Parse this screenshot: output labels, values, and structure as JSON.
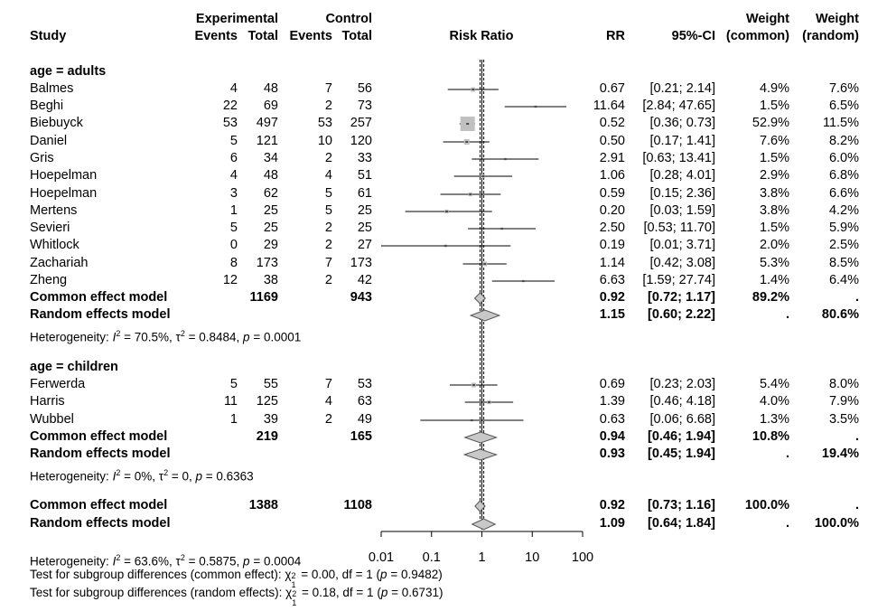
{
  "header": {
    "study": "Study",
    "experimental": "Experimental",
    "control": "Control",
    "events1": "Events",
    "total1": "Total",
    "events2": "Events",
    "total2": "Total",
    "risk_ratio": "Risk Ratio",
    "rr": "RR",
    "ci": "95%-CI",
    "weight1": "Weight",
    "weight1_sub": "(common)",
    "weight2": "Weight",
    "weight2_sub": "(random)"
  },
  "rows": [
    {
      "kind": "group",
      "label": "age = adults"
    },
    {
      "kind": "study",
      "label": "Balmes",
      "e_ev": "4",
      "e_tot": "48",
      "c_ev": "7",
      "c_tot": "56",
      "rr": "0.67",
      "ci": "[0.21; 2.14]",
      "w_common": "4.9%",
      "w_random": "7.6%"
    },
    {
      "kind": "study",
      "label": "Beghi",
      "e_ev": "22",
      "e_tot": "69",
      "c_ev": "2",
      "c_tot": "73",
      "rr": "11.64",
      "ci": "[2.84; 47.65]",
      "w_common": "1.5%",
      "w_random": "6.5%"
    },
    {
      "kind": "study",
      "label": "Biebuyck",
      "e_ev": "53",
      "e_tot": "497",
      "c_ev": "53",
      "c_tot": "257",
      "rr": "0.52",
      "ci": "[0.36; 0.73]",
      "w_common": "52.9%",
      "w_random": "11.5%"
    },
    {
      "kind": "study",
      "label": "Daniel",
      "e_ev": "5",
      "e_tot": "121",
      "c_ev": "10",
      "c_tot": "120",
      "rr": "0.50",
      "ci": "[0.17; 1.41]",
      "w_common": "7.6%",
      "w_random": "8.2%"
    },
    {
      "kind": "study",
      "label": "Gris",
      "e_ev": "6",
      "e_tot": "34",
      "c_ev": "2",
      "c_tot": "33",
      "rr": "2.91",
      "ci": "[0.63; 13.41]",
      "w_common": "1.5%",
      "w_random": "6.0%"
    },
    {
      "kind": "study",
      "label": "Hoepelman",
      "e_ev": "4",
      "e_tot": "48",
      "c_ev": "4",
      "c_tot": "51",
      "rr": "1.06",
      "ci": "[0.28; 4.01]",
      "w_common": "2.9%",
      "w_random": "6.8%"
    },
    {
      "kind": "study",
      "label": "Hoepelman",
      "e_ev": "3",
      "e_tot": "62",
      "c_ev": "5",
      "c_tot": "61",
      "rr": "0.59",
      "ci": "[0.15; 2.36]",
      "w_common": "3.8%",
      "w_random": "6.6%"
    },
    {
      "kind": "study",
      "label": "Mertens",
      "e_ev": "1",
      "e_tot": "25",
      "c_ev": "5",
      "c_tot": "25",
      "rr": "0.20",
      "ci": "[0.03; 1.59]",
      "w_common": "3.8%",
      "w_random": "4.2%"
    },
    {
      "kind": "study",
      "label": "Sevieri",
      "e_ev": "5",
      "e_tot": "25",
      "c_ev": "2",
      "c_tot": "25",
      "rr": "2.50",
      "ci": "[0.53; 11.70]",
      "w_common": "1.5%",
      "w_random": "5.9%"
    },
    {
      "kind": "study",
      "label": "Whitlock",
      "e_ev": "0",
      "e_tot": "29",
      "c_ev": "2",
      "c_tot": "27",
      "rr": "0.19",
      "ci": "[0.01; 3.71]",
      "w_common": "2.0%",
      "w_random": "2.5%"
    },
    {
      "kind": "study",
      "label": "Zachariah",
      "e_ev": "8",
      "e_tot": "173",
      "c_ev": "7",
      "c_tot": "173",
      "rr": "1.14",
      "ci": "[0.42; 3.08]",
      "w_common": "5.3%",
      "w_random": "8.5%"
    },
    {
      "kind": "study",
      "label": "Zheng",
      "e_ev": "12",
      "e_tot": "38",
      "c_ev": "2",
      "c_tot": "42",
      "rr": "6.63",
      "ci": "[1.59; 27.74]",
      "w_common": "1.4%",
      "w_random": "6.4%"
    },
    {
      "kind": "common",
      "label": "Common effect model",
      "e_tot": "1169",
      "c_tot": "943",
      "rr": "0.92",
      "ci": "[0.72; 1.17]",
      "w_common": "89.2%",
      "w_random": "."
    },
    {
      "kind": "random",
      "label": "Random effects model",
      "rr": "1.15",
      "ci": "[0.60; 2.22]",
      "w_common": ".",
      "w_random": "80.6%"
    },
    {
      "kind": "het",
      "pre": "Heterogeneity: ",
      "i2": "I",
      "sup": "2",
      "mid": " = 70.5%, τ",
      "sup2": "2",
      "mid2": " = 0.8484, ",
      "p": "p",
      "post": " = 0.0001"
    },
    {
      "kind": "blank"
    },
    {
      "kind": "group",
      "label": "age = children"
    },
    {
      "kind": "study",
      "label": "Ferwerda",
      "e_ev": "5",
      "e_tot": "55",
      "c_ev": "7",
      "c_tot": "53",
      "rr": "0.69",
      "ci": "[0.23; 2.03]",
      "w_common": "5.4%",
      "w_random": "8.0%"
    },
    {
      "kind": "study",
      "label": "Harris",
      "e_ev": "11",
      "e_tot": "125",
      "c_ev": "4",
      "c_tot": "63",
      "rr": "1.39",
      "ci": "[0.46; 4.18]",
      "w_common": "4.0%",
      "w_random": "7.9%"
    },
    {
      "kind": "study",
      "label": "Wubbel",
      "e_ev": "1",
      "e_tot": "39",
      "c_ev": "2",
      "c_tot": "49",
      "rr": "0.63",
      "ci": "[0.06; 6.68]",
      "w_common": "1.3%",
      "w_random": "3.5%"
    },
    {
      "kind": "common",
      "label": "Common effect model",
      "e_tot": "219",
      "c_tot": "165",
      "rr": "0.94",
      "ci": "[0.46; 1.94]",
      "w_common": "10.8%",
      "w_random": "."
    },
    {
      "kind": "random",
      "label": "Random effects model",
      "rr": "0.93",
      "ci": "[0.45; 1.94]",
      "w_common": ".",
      "w_random": "19.4%"
    },
    {
      "kind": "het",
      "pre": "Heterogeneity: ",
      "i2": "I",
      "sup": "2",
      "mid": " = 0%, τ",
      "sup2": "2",
      "mid2": " = 0, ",
      "p": "p",
      "post": " = 0.6363"
    },
    {
      "kind": "blank"
    },
    {
      "kind": "common",
      "label": "Common effect model",
      "e_tot": "1388",
      "c_tot": "1108",
      "rr": "0.92",
      "ci": "[0.73; 1.16]",
      "w_common": "100.0%",
      "w_random": "."
    },
    {
      "kind": "random",
      "label": "Random effects model",
      "rr": "1.09",
      "ci": "[0.64; 1.84]",
      "w_common": ".",
      "w_random": "100.0%"
    }
  ],
  "footer": {
    "het": {
      "pre": "Heterogeneity: ",
      "i2": "I",
      "sup": "2",
      "mid": " = 63.6%, τ",
      "sup2": "2",
      "mid2": " = 0.5875, ",
      "p": "p",
      "post": " = 0.0004"
    },
    "test_common": {
      "pre": "Test for subgroup differences (common effect): ",
      "chi": "χ",
      "sup": "2",
      "sub": "1",
      "mid": " = 0.00, df = 1 (",
      "p": "p",
      "post": " = 0.9482)"
    },
    "test_random": {
      "pre": "Test for subgroup differences (random effects): ",
      "chi": "χ",
      "sup": "2",
      "sub": "1",
      "mid": " = 0.18, df = 1 (",
      "p": "p",
      "post": " = 0.6731)"
    }
  },
  "chart_data": {
    "type": "forest",
    "xscale": "log",
    "xlim": [
      0.01,
      100
    ],
    "ticks": [
      0.01,
      0.1,
      1,
      10,
      100
    ],
    "tick_labels": [
      "0.01",
      "0.1",
      "1",
      "10",
      "100"
    ],
    "reference_line": 1,
    "common_line": 0.92,
    "random_line": 1.09,
    "studies": [
      {
        "label": "Balmes",
        "rr": 0.67,
        "lo": 0.21,
        "hi": 2.14,
        "w": 4.9
      },
      {
        "label": "Beghi",
        "rr": 11.64,
        "lo": 2.84,
        "hi": 47.65,
        "w": 1.5
      },
      {
        "label": "Biebuyck",
        "rr": 0.52,
        "lo": 0.36,
        "hi": 0.73,
        "w": 52.9
      },
      {
        "label": "Daniel",
        "rr": 0.5,
        "lo": 0.17,
        "hi": 1.41,
        "w": 7.6
      },
      {
        "label": "Gris",
        "rr": 2.91,
        "lo": 0.63,
        "hi": 13.41,
        "w": 1.5
      },
      {
        "label": "Hoepelman",
        "rr": 1.06,
        "lo": 0.28,
        "hi": 4.01,
        "w": 2.9
      },
      {
        "label": "Hoepelman",
        "rr": 0.59,
        "lo": 0.15,
        "hi": 2.36,
        "w": 3.8
      },
      {
        "label": "Mertens",
        "rr": 0.2,
        "lo": 0.03,
        "hi": 1.59,
        "w": 3.8
      },
      {
        "label": "Sevieri",
        "rr": 2.5,
        "lo": 0.53,
        "hi": 11.7,
        "w": 1.5
      },
      {
        "label": "Whitlock",
        "rr": 0.19,
        "lo": 0.01,
        "hi": 3.71,
        "w": 2.0
      },
      {
        "label": "Zachariah",
        "rr": 1.14,
        "lo": 0.42,
        "hi": 3.08,
        "w": 5.3
      },
      {
        "label": "Zheng",
        "rr": 6.63,
        "lo": 1.59,
        "hi": 27.74,
        "w": 1.4
      },
      {
        "label": "Ferwerda",
        "rr": 0.69,
        "lo": 0.23,
        "hi": 2.03,
        "w": 5.4
      },
      {
        "label": "Harris",
        "rr": 1.39,
        "lo": 0.46,
        "hi": 4.18,
        "w": 4.0
      },
      {
        "label": "Wubbel",
        "rr": 0.63,
        "lo": 0.06,
        "hi": 6.68,
        "w": 1.3
      }
    ],
    "summaries": [
      {
        "label": "Common effect model",
        "group": "age = adults",
        "rr": 0.92,
        "lo": 0.72,
        "hi": 1.17
      },
      {
        "label": "Random effects model",
        "group": "age = adults",
        "rr": 1.15,
        "lo": 0.6,
        "hi": 2.22
      },
      {
        "label": "Common effect model",
        "group": "age = children",
        "rr": 0.94,
        "lo": 0.46,
        "hi": 1.94
      },
      {
        "label": "Random effects model",
        "group": "age = children",
        "rr": 0.93,
        "lo": 0.45,
        "hi": 1.94
      },
      {
        "label": "Common effect model",
        "group": "overall",
        "rr": 0.92,
        "lo": 0.73,
        "hi": 1.16
      },
      {
        "label": "Random effects model",
        "group": "overall",
        "rr": 1.09,
        "lo": 0.64,
        "hi": 1.84
      }
    ],
    "colors": {
      "box": "#c0c0c0",
      "diamond": "#c8c8c8",
      "line": "#000000"
    }
  }
}
